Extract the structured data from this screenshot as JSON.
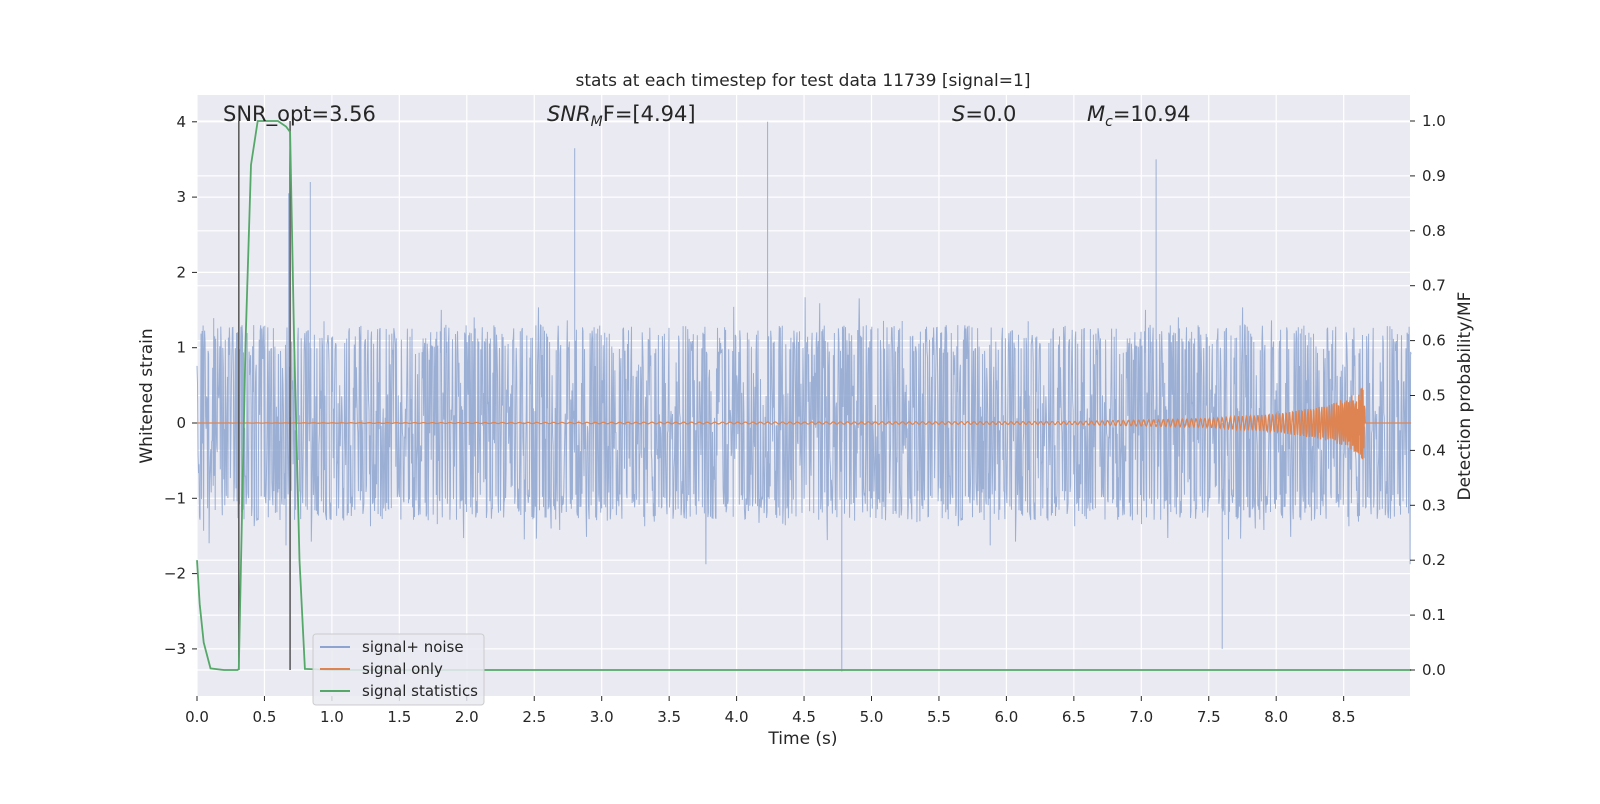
{
  "chart_data": {
    "type": "line",
    "title": "stats at each timestep for test data 11739 [signal=1]",
    "xlabel": "Time (s)",
    "ylabel_left": "Whitened strain",
    "ylabel_right": "Detection probability/MF",
    "xlim": [
      0.0,
      9.0
    ],
    "ylim_left": [
      -3.6,
      4.35
    ],
    "ylim_right": [
      -0.05,
      1.04
    ],
    "x_ticks": [
      "0.0",
      "0.5",
      "1.0",
      "1.5",
      "2.0",
      "2.5",
      "3.0",
      "3.5",
      "4.0",
      "4.5",
      "5.0",
      "5.5",
      "6.0",
      "6.5",
      "7.0",
      "7.5",
      "8.0",
      "8.5"
    ],
    "y_ticks_left": [
      "4",
      "3",
      "2",
      "1",
      "0",
      "−1",
      "−2",
      "−3"
    ],
    "y_ticks_right": [
      "1.0",
      "0.9",
      "0.8",
      "0.7",
      "0.6",
      "0.5",
      "0.4",
      "0.3",
      "0.2",
      "0.1",
      "0.0"
    ],
    "grid": true,
    "legend_position": "lower-left",
    "annotations": {
      "snr_opt": "SNR_opt=3.56",
      "snr_mf_base": "SNR",
      "snr_mf_sub": "M",
      "snr_mf_rest": "F=[4.94]",
      "s_var": "S",
      "s_rest": "=0.0",
      "mc_base": "M",
      "mc_sub": "c",
      "mc_rest": "=10.94"
    },
    "vertical_markers_x": [
      0.31,
      0.69
    ],
    "series": [
      {
        "name": "signal+ noise",
        "color": "#8da4d0",
        "description_values": {
          "x_range": [
            0.0,
            9.0
          ],
          "typical_band": [
            -1.1,
            1.1
          ],
          "max": 4.0,
          "min": -3.3,
          "notable_peaks": [
            [
              0.68,
              3.05
            ],
            [
              0.84,
              3.2
            ],
            [
              2.8,
              3.65
            ],
            [
              4.23,
              4.0
            ],
            [
              7.11,
              3.5
            ],
            [
              4.78,
              -3.3
            ],
            [
              7.6,
              -3.0
            ]
          ]
        }
      },
      {
        "name": "signal only",
        "color": "#dd8452",
        "values_envelope": [
          [
            0.0,
            0.0
          ],
          [
            6.5,
            0.02
          ],
          [
            7.5,
            0.06
          ],
          [
            8.0,
            0.12
          ],
          [
            8.4,
            0.24
          ],
          [
            8.6,
            0.4
          ],
          [
            8.65,
            0.5
          ],
          [
            8.68,
            0.0
          ]
        ]
      },
      {
        "name": "signal statistics",
        "color": "#55a868",
        "axis": "right",
        "x": [
          0.0,
          0.02,
          0.05,
          0.1,
          0.2,
          0.3,
          0.31,
          0.36,
          0.4,
          0.45,
          0.5,
          0.6,
          0.66,
          0.69,
          0.72,
          0.76,
          0.8,
          1.0,
          9.0
        ],
        "y": [
          0.2,
          0.12,
          0.05,
          0.003,
          0.0,
          0.0,
          0.002,
          0.6,
          0.92,
          1.0,
          1.0,
          1.0,
          0.99,
          0.98,
          0.6,
          0.2,
          0.002,
          0.0,
          0.0
        ]
      }
    ]
  }
}
